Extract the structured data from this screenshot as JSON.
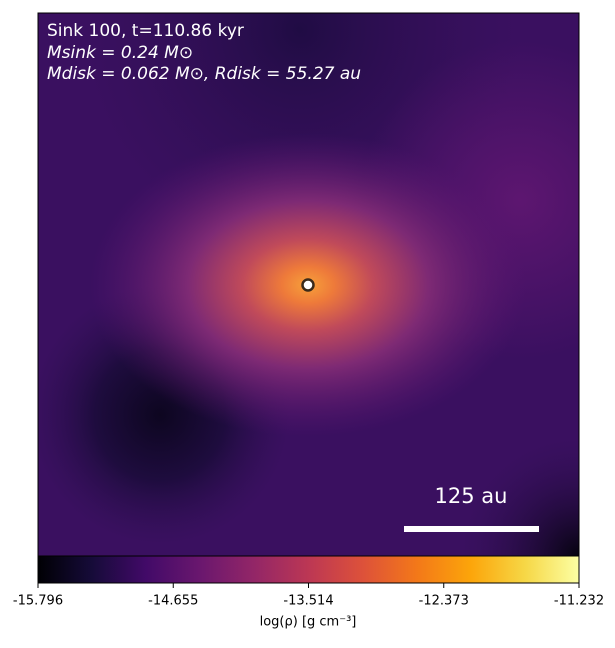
{
  "chart_data": {
    "type": "image",
    "annotations": [
      "Sink 100, t=110.86 kyr",
      "Msink = 0.24 M⊙",
      "Mdisk = 0.062 M⊙, Rdisk = 55.27 au"
    ],
    "scale_bar_label": "125 au",
    "colorbar": {
      "label": "log(ρ) [g cm⁻³]",
      "clim": [
        -15.796,
        -11.232
      ],
      "ticks": [
        -15.796,
        -14.655,
        -13.514,
        -12.373,
        -11.232
      ],
      "colormap": "inferno"
    }
  }
}
